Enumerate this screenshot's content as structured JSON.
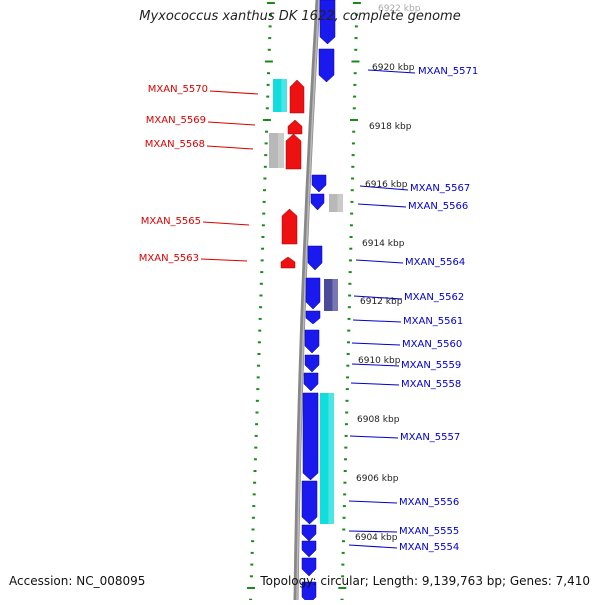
{
  "title": "Myxococcus xanthus DK 1622, complete genome",
  "footer": {
    "accession": "Accession: NC_008095",
    "topology": "Topology: circular; Length: 9,139,763 bp; Genes: 7,410"
  },
  "colors": {
    "forward_gene": "#1a1aee",
    "reverse_gene": "#ee1111",
    "cyan_gene": "#11dddd",
    "gray_gene": "#b8b8b8",
    "slate_gene": "#4a4a99",
    "backbone": "#888888",
    "tick": "#1a8a1a",
    "label_right": "#0000cc",
    "label_left": "#dd0000"
  },
  "scale_labels": [
    "6922 kbp",
    "6920 kbp",
    "6918 kbp",
    "6916 kbp",
    "6914 kbp",
    "6912 kbp",
    "6910 kbp",
    "6908 kbp",
    "6906 kbp",
    "6904 kbp"
  ],
  "left_labels": [
    "MXAN_5570",
    "MXAN_5569",
    "MXAN_5568",
    "MXAN_5565",
    "MXAN_5563"
  ],
  "right_labels": [
    "MXAN_5571",
    "MXAN_5567",
    "MXAN_5566",
    "MXAN_5564",
    "MXAN_5562",
    "MXAN_5561",
    "MXAN_5560",
    "MXAN_5559",
    "MXAN_5558",
    "MXAN_5557",
    "MXAN_5556",
    "MXAN_5555",
    "MXAN_5554"
  ]
}
